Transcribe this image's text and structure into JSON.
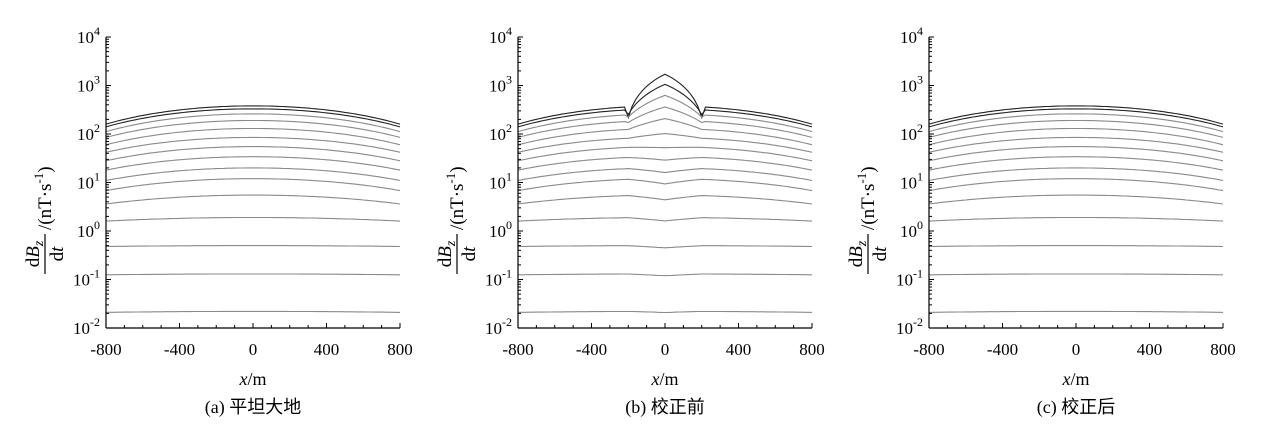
{
  "chart_data": [
    {
      "type": "line",
      "panel_label": "(a) 平坦大地",
      "xlabel": "x/m",
      "ylabel_top": "dBz",
      "ylabel_bottom": "dt",
      "ylabel_unit": "/(nT·s-1)",
      "xlim": [
        -800,
        800
      ],
      "ylim": [
        0.01,
        10000
      ],
      "yscale": "log",
      "x_ticks": [
        "-800",
        "-400",
        "0",
        "400",
        "800"
      ],
      "y_ticks": [
        "10^-2",
        "10^-1",
        "10^0",
        "10^1",
        "10^2",
        "10^3",
        "10^4"
      ],
      "x": [
        -800,
        -600,
        -400,
        -200,
        0,
        200,
        400,
        600,
        800
      ],
      "series_center_values": [
        380,
        330,
        260,
        190,
        130,
        85,
        55,
        34,
        20,
        12,
        5.5,
        1.9,
        0.5,
        0.13,
        0.022
      ],
      "series_edge_values": [
        160,
        140,
        112,
        85,
        60,
        42,
        28,
        18,
        11,
        6.8,
        3.6,
        1.6,
        0.48,
        0.125,
        0.021
      ],
      "anomaly": null
    },
    {
      "type": "line",
      "panel_label": "(b) 校正前",
      "xlabel": "x/m",
      "ylabel_top": "dBz",
      "ylabel_bottom": "dt",
      "ylabel_unit": "/(nT·s-1)",
      "xlim": [
        -800,
        800
      ],
      "ylim": [
        0.01,
        10000
      ],
      "yscale": "log",
      "x_ticks": [
        "-800",
        "-400",
        "0",
        "400",
        "800"
      ],
      "y_ticks": [
        "10^-2",
        "10^-1",
        "10^0",
        "10^1",
        "10^2",
        "10^3",
        "10^4"
      ],
      "x": [
        -800,
        -600,
        -400,
        -200,
        0,
        200,
        400,
        600,
        800
      ],
      "series_center_values": [
        380,
        330,
        260,
        190,
        130,
        85,
        55,
        34,
        20,
        12,
        5.5,
        1.9,
        0.5,
        0.13,
        0.022
      ],
      "series_edge_values": [
        160,
        140,
        112,
        85,
        60,
        42,
        28,
        18,
        11,
        6.8,
        3.6,
        1.6,
        0.48,
        0.125,
        0.021
      ],
      "anomaly": {
        "x_range": [
          -200,
          200
        ],
        "peak_factors": [
          4.5,
          3.2,
          2.4,
          1.9,
          1.6,
          1.2,
          0.95,
          0.85,
          0.8,
          0.78,
          0.8,
          0.85,
          0.9,
          0.92,
          0.95
        ],
        "edge_factors": [
          0.6,
          0.8,
          0.9,
          0.95,
          1,
          1,
          1,
          1,
          1,
          1,
          1,
          1,
          1,
          1,
          1
        ]
      }
    },
    {
      "type": "line",
      "panel_label": "(c) 校正后",
      "xlabel": "x/m",
      "ylabel_top": "dBz",
      "ylabel_bottom": "dt",
      "ylabel_unit": "/(nT·s-1)",
      "xlim": [
        -800,
        800
      ],
      "ylim": [
        0.01,
        10000
      ],
      "yscale": "log",
      "x_ticks": [
        "-800",
        "-400",
        "0",
        "400",
        "800"
      ],
      "y_ticks": [
        "10^-2",
        "10^-1",
        "10^0",
        "10^1",
        "10^2",
        "10^3",
        "10^4"
      ],
      "x": [
        -800,
        -600,
        -400,
        -200,
        0,
        200,
        400,
        600,
        800
      ],
      "series_center_values": [
        380,
        330,
        260,
        190,
        130,
        85,
        55,
        34,
        20,
        12,
        5.5,
        1.9,
        0.5,
        0.13,
        0.022
      ],
      "series_edge_values": [
        160,
        140,
        112,
        85,
        60,
        42,
        28,
        18,
        11,
        6.8,
        3.6,
        1.6,
        0.48,
        0.125,
        0.021
      ],
      "anomaly": null
    }
  ],
  "colors": {
    "curve_dark": "#222222",
    "curve_light": "#8a8a8a",
    "axis": "#000000"
  }
}
